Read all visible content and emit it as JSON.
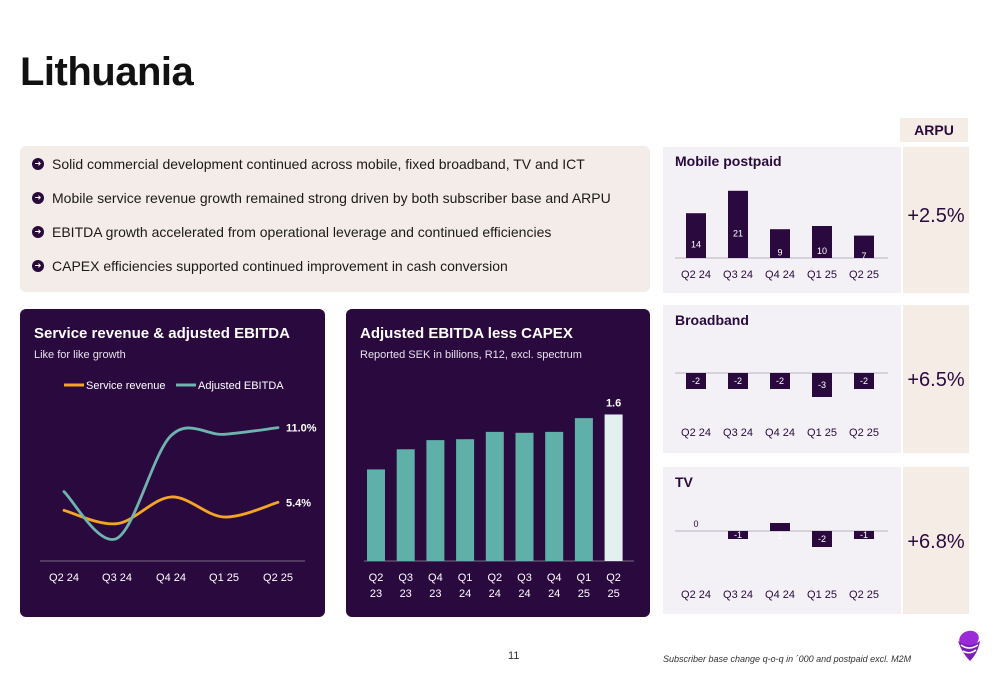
{
  "page": {
    "title": "Lithuania",
    "page_number": "11",
    "footnote": "Subscriber base change q-o-q in ´000 and postpaid excl. M2M"
  },
  "bullets": [
    "Solid commercial development continued across mobile, fixed broadband, TV and ICT",
    "Mobile service revenue growth remained strong driven by both subscriber base and ARPU",
    "EBITDA growth accelerated from operational leverage and continued efficiencies",
    "CAPEX efficiencies supported continued improvement in cash conversion"
  ],
  "arpu_header": "ARPU",
  "colors": {
    "dark_panel": "#2a0a3e",
    "orange": "#f5a524",
    "teal": "#6fb3b0",
    "bar_teal": "#5fb0a8",
    "bar_last": "#e3f0ef",
    "bar_purple": "#2a0a3e"
  },
  "chart_data": [
    {
      "type": "line",
      "title": "Service revenue & adjusted EBITDA",
      "subtitle": "Like for like growth",
      "categories": [
        "Q2 24",
        "Q3 24",
        "Q4 24",
        "Q1 25",
        "Q2 25"
      ],
      "series": [
        {
          "name": "Service revenue",
          "values": [
            4.8,
            3.8,
            5.8,
            4.3,
            5.4
          ],
          "end_label": "5.4%"
        },
        {
          "name": "Adjusted EBITDA",
          "values": [
            6.2,
            2.7,
            10.4,
            10.5,
            11.0
          ],
          "end_label": "11.0%"
        }
      ],
      "ylim": [
        1,
        13
      ],
      "grid": false,
      "legend": "top"
    },
    {
      "type": "bar",
      "title": "Adjusted EBITDA less CAPEX",
      "subtitle": "Reported SEK in billions, R12, excl. spectrum",
      "categories": [
        [
          "Q2",
          "23"
        ],
        [
          "Q3",
          "23"
        ],
        [
          "Q4",
          "23"
        ],
        [
          "Q1",
          "24"
        ],
        [
          "Q2",
          "24"
        ],
        [
          "Q3",
          "24"
        ],
        [
          "Q4",
          "24"
        ],
        [
          "Q1",
          "25"
        ],
        [
          "Q2",
          "25"
        ]
      ],
      "values": [
        1.0,
        1.22,
        1.32,
        1.33,
        1.41,
        1.4,
        1.41,
        1.56,
        1.6
      ],
      "last_label": "1.6",
      "ylim": [
        0,
        1.9
      ]
    },
    {
      "type": "bar",
      "title": "Mobile postpaid",
      "categories": [
        "Q2 24",
        "Q3 24",
        "Q4 24",
        "Q1 25",
        "Q2 25"
      ],
      "values": [
        14,
        21,
        9,
        10,
        7
      ],
      "kpi": "+2.5%"
    },
    {
      "type": "bar",
      "title": "Broadband",
      "categories": [
        "Q2 24",
        "Q3 24",
        "Q4 24",
        "Q1 25",
        "Q2 25"
      ],
      "values": [
        -2,
        -2,
        -2,
        -3,
        -2
      ],
      "kpi": "+6.5%"
    },
    {
      "type": "bar",
      "title": "TV",
      "categories": [
        "Q2 24",
        "Q3 24",
        "Q4 24",
        "Q1 25",
        "Q2 25"
      ],
      "values": [
        0,
        -1,
        1,
        -2,
        -1
      ],
      "kpi": "+6.8%"
    }
  ]
}
